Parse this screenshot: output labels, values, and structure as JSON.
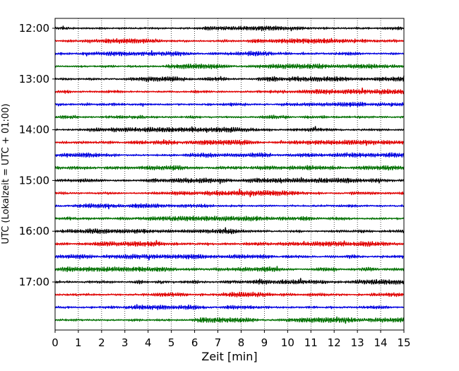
{
  "chart_data": {
    "type": "line",
    "description_kind": "helicorder",
    "xlabel": "Zeit  [min]",
    "ylabel": "UTC (Lokalzeit = UTC + 01:00)",
    "xlim": [
      0,
      15
    ],
    "x_ticks": [
      "0",
      "1",
      "2",
      "3",
      "4",
      "5",
      "6",
      "7",
      "8",
      "9",
      "10",
      "11",
      "12",
      "13",
      "14",
      "15"
    ],
    "y_tick_labels": [
      "12:00",
      "13:00",
      "14:00",
      "15:00",
      "16:00",
      "17:00"
    ],
    "grid": "vertical dotted at every minute",
    "trace_interval_min": 15,
    "trace_colors": [
      "#000000",
      "#e00000",
      "#0000e0",
      "#007000"
    ],
    "traces": [
      {
        "start": "12:00",
        "color_index": 0
      },
      {
        "start": "12:15",
        "color_index": 1
      },
      {
        "start": "12:30",
        "color_index": 2
      },
      {
        "start": "12:45",
        "color_index": 3
      },
      {
        "start": "13:00",
        "color_index": 0
      },
      {
        "start": "13:15",
        "color_index": 1
      },
      {
        "start": "13:30",
        "color_index": 2
      },
      {
        "start": "13:45",
        "color_index": 3
      },
      {
        "start": "14:00",
        "color_index": 0
      },
      {
        "start": "14:15",
        "color_index": 1
      },
      {
        "start": "14:30",
        "color_index": 2
      },
      {
        "start": "14:45",
        "color_index": 3
      },
      {
        "start": "15:00",
        "color_index": 0
      },
      {
        "start": "15:15",
        "color_index": 1
      },
      {
        "start": "15:30",
        "color_index": 2
      },
      {
        "start": "15:45",
        "color_index": 3
      },
      {
        "start": "16:00",
        "color_index": 0
      },
      {
        "start": "16:15",
        "color_index": 1
      },
      {
        "start": "16:30",
        "color_index": 2
      },
      {
        "start": "16:45",
        "color_index": 3
      },
      {
        "start": "17:00",
        "color_index": 0
      },
      {
        "start": "17:15",
        "color_index": 1
      },
      {
        "start": "17:30",
        "color_index": 2
      },
      {
        "start": "17:45",
        "color_index": 3
      }
    ]
  }
}
